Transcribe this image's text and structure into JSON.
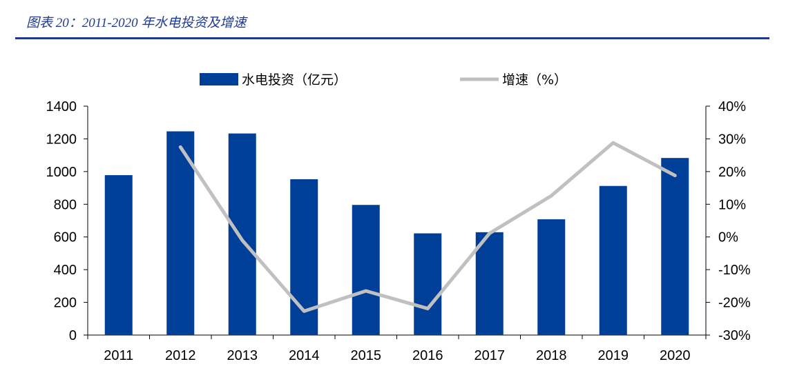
{
  "header": {
    "caption": "图表 20：2011-2020 年水电投资及增速"
  },
  "colors": {
    "bar": "#003f98",
    "line": "#c0c0c0",
    "caption": "#1f3a93"
  },
  "chart_data": {
    "type": "bar",
    "categories": [
      "2011",
      "2012",
      "2013",
      "2014",
      "2015",
      "2016",
      "2017",
      "2018",
      "2019",
      "2020"
    ],
    "series": [
      {
        "name": "水电投资（亿元）",
        "type": "bar",
        "axis": "left",
        "values": [
          978,
          1246,
          1233,
          953,
          796,
          622,
          629,
          708,
          912,
          1083
        ]
      },
      {
        "name": "增速（%）",
        "type": "line",
        "axis": "right",
        "values": [
          null,
          27.5,
          -1.0,
          -22.7,
          -16.5,
          -21.9,
          1.1,
          12.6,
          28.8,
          18.8
        ]
      }
    ],
    "left_axis": {
      "min": 0,
      "max": 1400,
      "step": 200,
      "tick_labels": [
        "0",
        "200",
        "400",
        "600",
        "800",
        "1000",
        "1200",
        "1400"
      ]
    },
    "right_axis": {
      "min": -30,
      "max": 40,
      "step": 10,
      "tick_labels": [
        "-30%",
        "-20%",
        "-10%",
        "0%",
        "10%",
        "20%",
        "30%",
        "40%"
      ]
    },
    "grid": false,
    "legend_position": "top"
  }
}
